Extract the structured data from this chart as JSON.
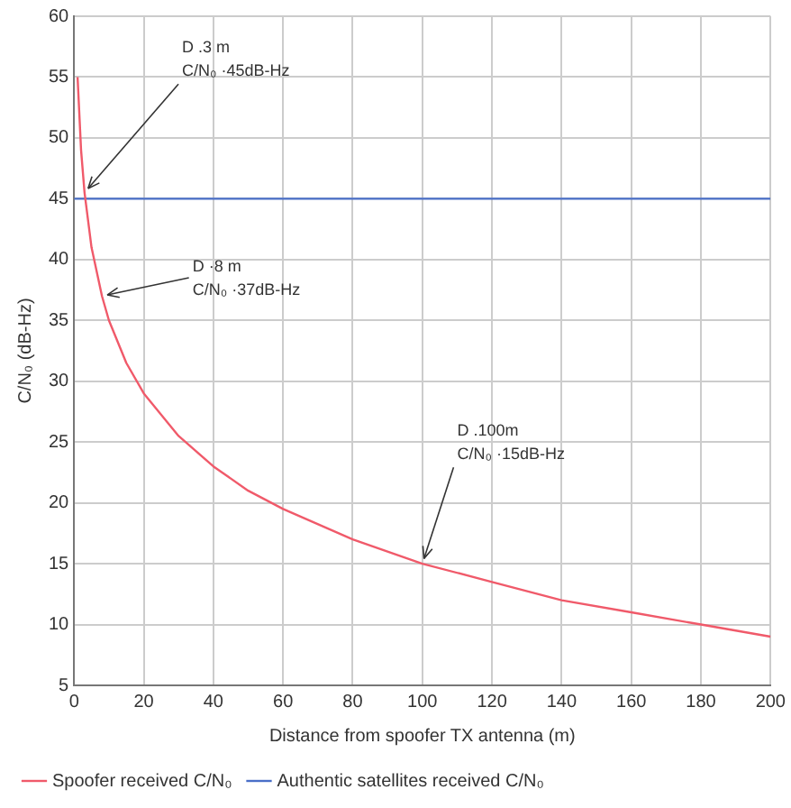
{
  "chart_data": {
    "type": "line",
    "xlabel": "Distance from spoofer TX antenna (m)",
    "ylabel": "C/N₀ (dB-Hz)",
    "xlim": [
      0,
      200
    ],
    "xticks": [
      0,
      20,
      40,
      60,
      80,
      100,
      120,
      140,
      160,
      180,
      200
    ],
    "ylim": [
      5,
      60
    ],
    "yticks": [
      5,
      10,
      15,
      20,
      25,
      30,
      35,
      40,
      45,
      50,
      55,
      60
    ],
    "grid": true,
    "legend": "bottom",
    "marker": "none",
    "line_style": "solid",
    "series": [
      {
        "name": "Spoofer received C/N₀",
        "color": "#f05a6a",
        "x": [
          1,
          2,
          3,
          5,
          8,
          10,
          15,
          20,
          30,
          40,
          50,
          60,
          80,
          100,
          120,
          140,
          160,
          180,
          200
        ],
        "values": [
          55,
          49,
          45.5,
          41,
          37,
          35,
          31.5,
          29,
          25.5,
          23,
          21,
          19.5,
          17,
          15,
          13.5,
          12,
          11,
          10,
          9
        ]
      },
      {
        "name": "Authentic satellites received C/N₀",
        "color": "#4a6fc8",
        "x": [
          0,
          200
        ],
        "values": [
          45,
          45
        ]
      }
    ],
    "annotations": [
      {
        "text": "D .3 m\nC/N₀ ·45dB-Hz",
        "x": 3,
        "y": 45.5
      },
      {
        "text": "D ·8 m\nC/N₀ ·37dB-Hz",
        "x": 8,
        "y": 37
      },
      {
        "text": "D .100m\nC/N₀ ·15dB-Hz",
        "x": 100,
        "y": 15
      }
    ]
  }
}
